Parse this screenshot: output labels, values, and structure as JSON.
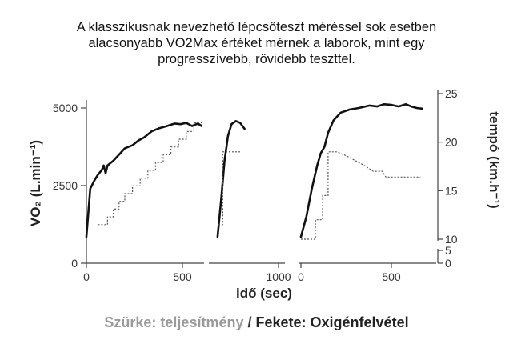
{
  "caption": [
    "A klasszikusnak nevezhető lépcsőteszt méréssel sok esetben",
    "alacsonyabb VO2Max értéket mérnek a laborok, mint egy",
    "progresszívebb, rövidebb teszttel."
  ],
  "footer": {
    "gray_text": "Szürke: teljesítmény",
    "separator": " / ",
    "black_text": "Fekete: Oxigénfelvétel"
  },
  "chart_data": {
    "type": "line",
    "xlabel": "idő (sec)",
    "ylabel_left": "VO₂ (L.min⁻¹)",
    "ylabel_right": "tempó (km.h⁻¹)",
    "left_axis": {
      "ylim": [
        0,
        5500
      ],
      "ticks": [
        0,
        2500,
        5000
      ],
      "tick_labels": [
        "0",
        "2500",
        "5000"
      ]
    },
    "right_axis": {
      "ticks_main": [
        10,
        15,
        20,
        25
      ],
      "tick_labels_main": [
        "10",
        "15",
        "20",
        "25"
      ],
      "ticks_low": [
        0,
        5
      ],
      "tick_labels_low": [
        "0",
        "5"
      ]
    },
    "panels": [
      {
        "xlim": [
          0,
          600
        ],
        "x_ticks": [
          0,
          500
        ],
        "x_tick_labels": [
          "0",
          "500"
        ],
        "series": [
          {
            "style": "solid",
            "points": [
              [
                0,
                850
              ],
              [
                20,
                2400
              ],
              [
                40,
                2650
              ],
              [
                60,
                2850
              ],
              [
                80,
                3000
              ],
              [
                90,
                3150
              ],
              [
                100,
                2900
              ],
              [
                110,
                3150
              ],
              [
                140,
                3300
              ],
              [
                170,
                3500
              ],
              [
                200,
                3700
              ],
              [
                240,
                3800
              ],
              [
                270,
                3950
              ],
              [
                300,
                4050
              ],
              [
                340,
                4250
              ],
              [
                380,
                4350
              ],
              [
                420,
                4420
              ],
              [
                460,
                4500
              ],
              [
                490,
                4480
              ],
              [
                520,
                4520
              ],
              [
                550,
                4420
              ],
              [
                580,
                4500
              ],
              [
                600,
                4420
              ]
            ]
          },
          {
            "style": "dashed",
            "points": [
              [
                60,
                11.5
              ],
              [
                110,
                11.5
              ],
              [
                110,
                12.3
              ],
              [
                140,
                12.3
              ],
              [
                140,
                13.1
              ],
              [
                170,
                13.1
              ],
              [
                170,
                13.9
              ],
              [
                200,
                13.9
              ],
              [
                200,
                14.7
              ],
              [
                240,
                14.7
              ],
              [
                240,
                15.5
              ],
              [
                280,
                15.5
              ],
              [
                280,
                16.3
              ],
              [
                320,
                16.3
              ],
              [
                320,
                17.1
              ],
              [
                360,
                17.1
              ],
              [
                360,
                17.9
              ],
              [
                400,
                17.9
              ],
              [
                400,
                18.7
              ],
              [
                440,
                18.7
              ],
              [
                440,
                19.5
              ],
              [
                480,
                19.5
              ],
              [
                480,
                20.3
              ],
              [
                520,
                20.3
              ],
              [
                520,
                21.1
              ],
              [
                560,
                21.1
              ],
              [
                560,
                22.0
              ],
              [
                610,
                22.0
              ]
            ]
          }
        ]
      },
      {
        "xlim": [
          600,
          1100
        ],
        "x_ticks": [
          1000
        ],
        "x_tick_labels": [
          "1000"
        ],
        "series": [
          {
            "style": "solid",
            "points": [
              [
                650,
                850
              ],
              [
                670,
                2000
              ],
              [
                690,
                3300
              ],
              [
                710,
                4100
              ],
              [
                730,
                4480
              ],
              [
                755,
                4580
              ],
              [
                780,
                4520
              ],
              [
                805,
                4330
              ]
            ]
          },
          {
            "style": "dashed",
            "points": [
              [
                655,
                11.5
              ],
              [
                680,
                11.5
              ],
              [
                680,
                19.0
              ],
              [
                790,
                19.0
              ]
            ]
          }
        ]
      },
      {
        "xlim": [
          0,
          650
        ],
        "x_ticks": [
          0,
          500
        ],
        "x_tick_labels": [
          "0",
          "500"
        ],
        "series": [
          {
            "style": "solid",
            "points": [
              [
                0,
                850
              ],
              [
                30,
                1500
              ],
              [
                60,
                2400
              ],
              [
                90,
                3150
              ],
              [
                110,
                3550
              ],
              [
                130,
                3750
              ],
              [
                150,
                4200
              ],
              [
                180,
                4600
              ],
              [
                220,
                4850
              ],
              [
                270,
                4950
              ],
              [
                320,
                5000
              ],
              [
                380,
                5080
              ],
              [
                420,
                5050
              ],
              [
                460,
                5120
              ],
              [
                500,
                5100
              ],
              [
                540,
                5050
              ],
              [
                580,
                5120
              ],
              [
                610,
                5050
              ],
              [
                640,
                5000
              ],
              [
                670,
                4980
              ]
            ]
          },
          {
            "style": "dashed",
            "points": [
              [
                0,
                10
              ],
              [
                80,
                10
              ],
              [
                80,
                12.0
              ],
              [
                120,
                12.0
              ],
              [
                120,
                14.5
              ],
              [
                150,
                14.5
              ],
              [
                150,
                19.0
              ],
              [
                200,
                19.0
              ],
              [
                250,
                18.6
              ],
              [
                300,
                18.1
              ],
              [
                350,
                17.6
              ],
              [
                400,
                17.0
              ],
              [
                450,
                17.0
              ],
              [
                470,
                16.4
              ],
              [
                550,
                16.4
              ],
              [
                660,
                16.4
              ]
            ]
          }
        ]
      }
    ]
  }
}
